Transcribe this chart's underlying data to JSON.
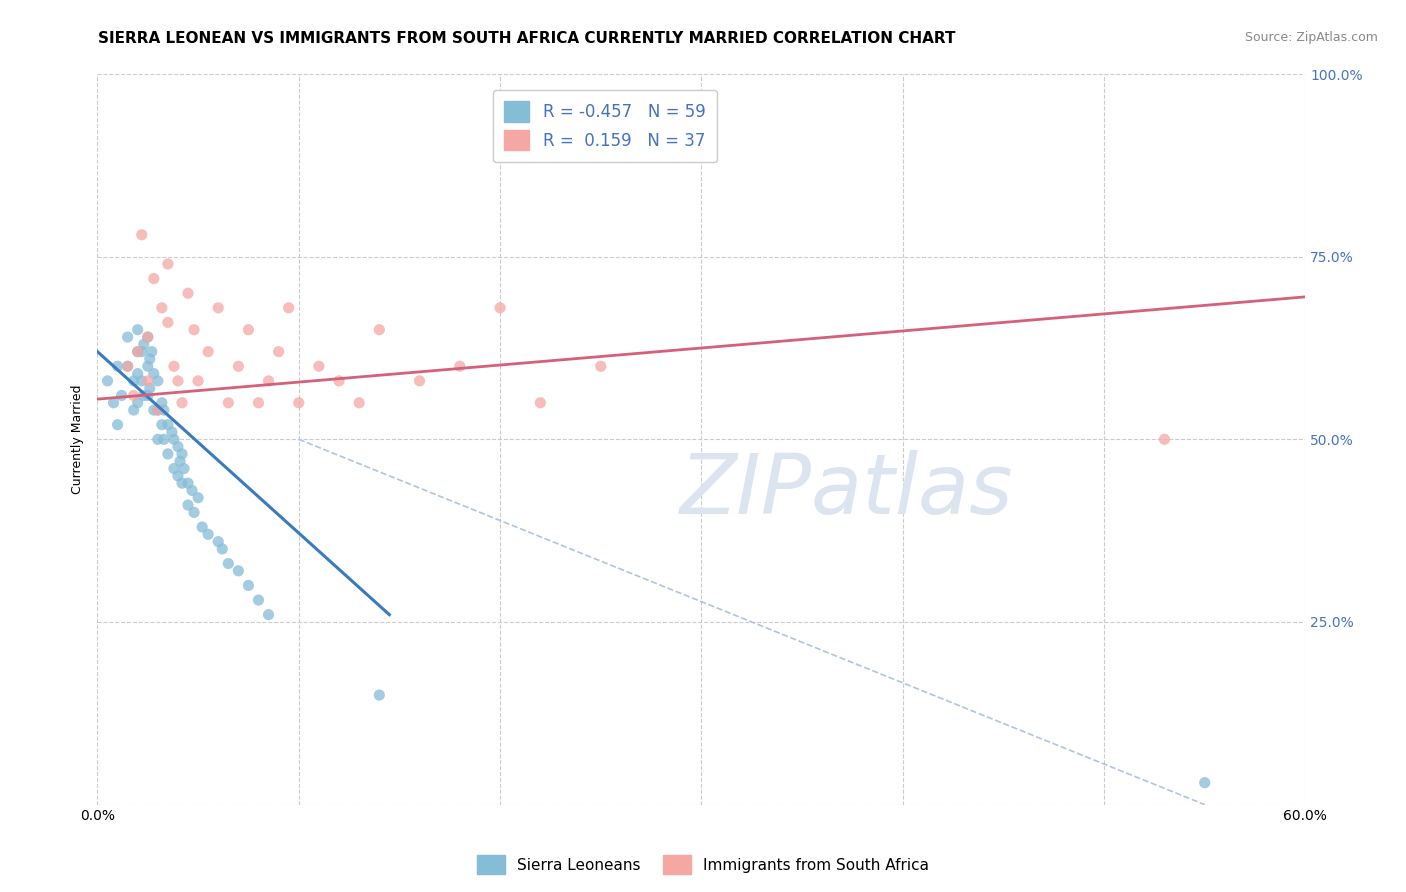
{
  "title": "SIERRA LEONEAN VS IMMIGRANTS FROM SOUTH AFRICA CURRENTLY MARRIED CORRELATION CHART",
  "source": "Source: ZipAtlas.com",
  "ylabel": "Currently Married",
  "watermark": "ZIPatlas",
  "x_min": 0.0,
  "x_max": 0.6,
  "y_min": 0.0,
  "y_max": 1.0,
  "x_ticks": [
    0.0,
    0.1,
    0.2,
    0.3,
    0.4,
    0.5,
    0.6
  ],
  "x_tick_labels": [
    "0.0%",
    "",
    "",
    "",
    "",
    "",
    "60.0%"
  ],
  "y_ticks": [
    0.0,
    0.25,
    0.5,
    0.75,
    1.0
  ],
  "y_tick_labels_left": [
    "",
    "",
    "",
    "",
    ""
  ],
  "y_tick_labels_right": [
    "",
    "25.0%",
    "50.0%",
    "75.0%",
    "100.0%"
  ],
  "blue_color": "#85bcd8",
  "pink_color": "#f4a7a3",
  "blue_line_color": "#3a7abf",
  "pink_line_color": "#d4607a",
  "r_blue": -0.457,
  "n_blue": 59,
  "r_pink": 0.159,
  "n_pink": 37,
  "legend_label_blue": "Sierra Leoneans",
  "legend_label_pink": "Immigrants from South Africa",
  "blue_scatter_x": [
    0.005,
    0.008,
    0.01,
    0.01,
    0.012,
    0.015,
    0.015,
    0.018,
    0.018,
    0.02,
    0.02,
    0.02,
    0.02,
    0.022,
    0.022,
    0.023,
    0.023,
    0.025,
    0.025,
    0.025,
    0.026,
    0.026,
    0.027,
    0.028,
    0.028,
    0.03,
    0.03,
    0.03,
    0.032,
    0.032,
    0.033,
    0.033,
    0.035,
    0.035,
    0.037,
    0.038,
    0.038,
    0.04,
    0.04,
    0.041,
    0.042,
    0.042,
    0.043,
    0.045,
    0.045,
    0.047,
    0.048,
    0.05,
    0.052,
    0.055,
    0.06,
    0.062,
    0.065,
    0.07,
    0.075,
    0.08,
    0.085,
    0.14,
    0.55
  ],
  "blue_scatter_y": [
    0.58,
    0.55,
    0.52,
    0.6,
    0.56,
    0.64,
    0.6,
    0.58,
    0.54,
    0.65,
    0.62,
    0.59,
    0.55,
    0.62,
    0.58,
    0.63,
    0.56,
    0.64,
    0.6,
    0.56,
    0.61,
    0.57,
    0.62,
    0.59,
    0.54,
    0.58,
    0.54,
    0.5,
    0.55,
    0.52,
    0.54,
    0.5,
    0.52,
    0.48,
    0.51,
    0.5,
    0.46,
    0.49,
    0.45,
    0.47,
    0.48,
    0.44,
    0.46,
    0.44,
    0.41,
    0.43,
    0.4,
    0.42,
    0.38,
    0.37,
    0.36,
    0.35,
    0.33,
    0.32,
    0.3,
    0.28,
    0.26,
    0.15,
    0.03
  ],
  "pink_scatter_x": [
    0.015,
    0.018,
    0.02,
    0.022,
    0.025,
    0.025,
    0.028,
    0.03,
    0.032,
    0.035,
    0.035,
    0.038,
    0.04,
    0.042,
    0.045,
    0.048,
    0.05,
    0.055,
    0.06,
    0.065,
    0.07,
    0.075,
    0.08,
    0.085,
    0.09,
    0.095,
    0.1,
    0.11,
    0.12,
    0.13,
    0.14,
    0.16,
    0.18,
    0.2,
    0.22,
    0.25,
    0.53
  ],
  "pink_scatter_y": [
    0.6,
    0.56,
    0.62,
    0.78,
    0.64,
    0.58,
    0.72,
    0.54,
    0.68,
    0.74,
    0.66,
    0.6,
    0.58,
    0.55,
    0.7,
    0.65,
    0.58,
    0.62,
    0.68,
    0.55,
    0.6,
    0.65,
    0.55,
    0.58,
    0.62,
    0.68,
    0.55,
    0.6,
    0.58,
    0.55,
    0.65,
    0.58,
    0.6,
    0.68,
    0.55,
    0.6,
    0.5
  ],
  "blue_line_x0": 0.0,
  "blue_line_x1": 0.145,
  "blue_line_y0": 0.62,
  "blue_line_y1": 0.26,
  "pink_line_x0": 0.0,
  "pink_line_x1": 0.6,
  "pink_line_y0": 0.555,
  "pink_line_y1": 0.695,
  "ref_line_x0": 0.1,
  "ref_line_x1": 0.55,
  "ref_line_y0": 0.5,
  "ref_line_y1": 0.0,
  "grid_color": "#cccccc",
  "background_color": "#ffffff",
  "title_fontsize": 11,
  "axis_label_fontsize": 9,
  "tick_fontsize": 10,
  "right_tick_color": "#4472c4",
  "watermark_color": "#dce4f0",
  "watermark_fontsize": 60
}
